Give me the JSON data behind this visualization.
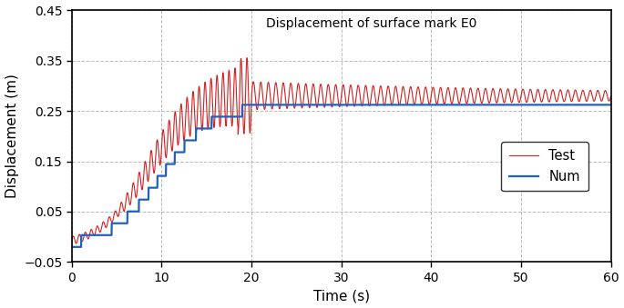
{
  "title": "Displacement of surface mark E0",
  "xlabel": "Time (s)",
  "ylabel": "Displacement (m)",
  "xlim": [
    0,
    60
  ],
  "ylim": [
    -0.05,
    0.45
  ],
  "yticks": [
    -0.05,
    0.05,
    0.15,
    0.25,
    0.35,
    0.45
  ],
  "xticks": [
    0,
    10,
    20,
    30,
    40,
    50,
    60
  ],
  "test_color": "#d42020",
  "num_color": "#2060c0",
  "legend_labels": [
    "Test",
    "Num"
  ],
  "grid_color": "#bbbbbb",
  "grid_style": "--",
  "num_plateau": 0.262,
  "num_baseline": -0.02,
  "test_plateau": 0.285,
  "test_baseline": -0.02
}
